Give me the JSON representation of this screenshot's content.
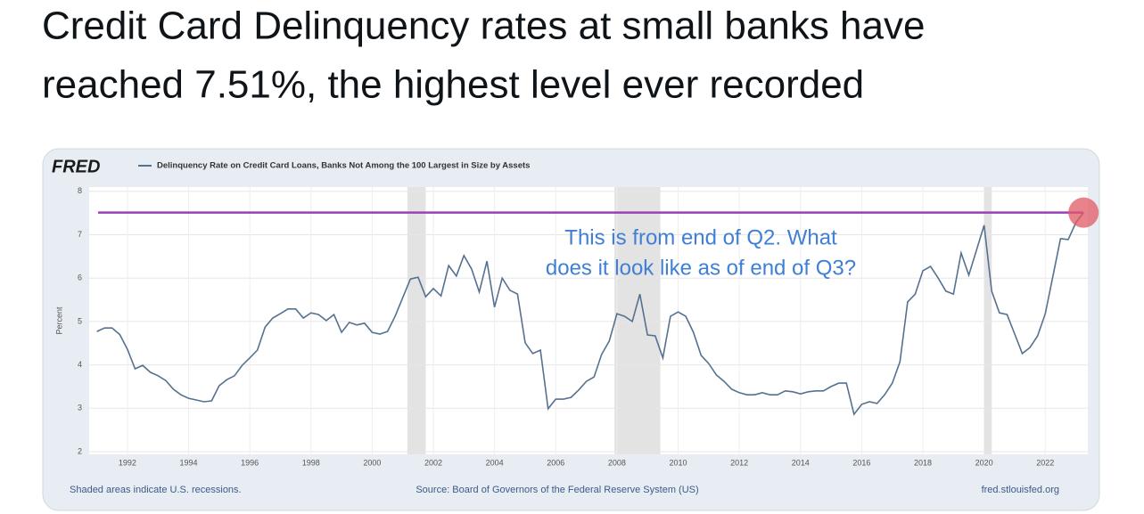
{
  "tweet": {
    "lines": [
      "Credit Card Delinquency rates at small banks have",
      "reached 7.51%, the highest level ever recorded"
    ]
  },
  "chart_data": {
    "type": "line",
    "brand": "FRED",
    "ylabel": "Percent",
    "annotation": [
      "This is from end of Q2. What",
      "does it look like as of end of Q3?"
    ],
    "notes": {
      "left": "Shaded areas indicate U.S. recessions.",
      "center": "Source: Board of Governors of the Federal Reserve System (US)",
      "right": "fred.stlouisfed.org"
    },
    "xlim": [
      1990.75,
      2023.35
    ],
    "ylim": [
      2,
      8
    ],
    "xticks": [
      1992,
      1994,
      1996,
      1998,
      2000,
      2002,
      2004,
      2006,
      2008,
      2010,
      2012,
      2014,
      2016,
      2018,
      2020,
      2022
    ],
    "yticks": [
      2,
      3,
      4,
      5,
      6,
      7,
      8
    ],
    "grid": true,
    "recessions": [
      [
        2001.15,
        2001.75
      ],
      [
        2007.92,
        2009.42
      ],
      [
        2020.0,
        2020.25
      ]
    ],
    "recession_color": "#e3e3e3",
    "hline": {
      "value": 7.51,
      "color": "#9b3fb5"
    },
    "highlight_color": "#e05a64",
    "x": [
      1991.0,
      1991.25,
      1991.5,
      1991.75,
      1992.0,
      1992.25,
      1992.5,
      1992.75,
      1993.0,
      1993.25,
      1993.5,
      1993.75,
      1994.0,
      1994.25,
      1994.5,
      1994.75,
      1995.0,
      1995.25,
      1995.5,
      1995.75,
      1996.0,
      1996.25,
      1996.5,
      1996.75,
      1997.0,
      1997.25,
      1997.5,
      1997.75,
      1998.0,
      1998.25,
      1998.5,
      1998.75,
      1999.0,
      1999.25,
      1999.5,
      1999.75,
      2000.0,
      2000.25,
      2000.5,
      2000.75,
      2001.0,
      2001.25,
      2001.5,
      2001.75,
      2002.0,
      2002.25,
      2002.5,
      2002.75,
      2003.0,
      2003.25,
      2003.5,
      2003.75,
      2004.0,
      2004.25,
      2004.5,
      2004.75,
      2005.0,
      2005.25,
      2005.5,
      2005.75,
      2006.0,
      2006.25,
      2006.5,
      2006.75,
      2007.0,
      2007.25,
      2007.5,
      2007.75,
      2008.0,
      2008.25,
      2008.5,
      2008.75,
      2009.0,
      2009.25,
      2009.5,
      2009.75,
      2010.0,
      2010.25,
      2010.5,
      2010.75,
      2011.0,
      2011.25,
      2011.5,
      2011.75,
      2012.0,
      2012.25,
      2012.5,
      2012.75,
      2013.0,
      2013.25,
      2013.5,
      2013.75,
      2014.0,
      2014.25,
      2014.5,
      2014.75,
      2015.0,
      2015.25,
      2015.5,
      2015.75,
      2016.0,
      2016.25,
      2016.5,
      2016.75,
      2017.0,
      2017.25,
      2017.5,
      2017.75,
      2018.0,
      2018.25,
      2018.5,
      2018.75,
      2019.0,
      2019.25,
      2019.5,
      2019.75,
      2020.0,
      2020.25,
      2020.5,
      2020.75,
      2021.0,
      2021.25,
      2021.5,
      2021.75,
      2022.0,
      2022.25,
      2022.5,
      2022.75,
      2023.0,
      2023.25
    ],
    "series": [
      {
        "name": "Delinquency Rate on Credit Card Loans, Banks Not Among the 100 Largest in Size by Assets",
        "color": "#56718f",
        "values": [
          4.77,
          4.85,
          4.85,
          4.7,
          4.36,
          3.91,
          3.99,
          3.83,
          3.75,
          3.64,
          3.44,
          3.31,
          3.23,
          3.19,
          3.15,
          3.17,
          3.52,
          3.66,
          3.75,
          3.99,
          4.16,
          4.34,
          4.87,
          5.08,
          5.18,
          5.29,
          5.29,
          5.08,
          5.2,
          5.16,
          5.02,
          5.16,
          4.75,
          4.98,
          4.92,
          4.96,
          4.75,
          4.71,
          4.77,
          5.12,
          5.55,
          5.98,
          6.02,
          5.57,
          5.76,
          5.59,
          6.29,
          6.05,
          6.52,
          6.21,
          5.68,
          6.39,
          5.33,
          6.0,
          5.72,
          5.63,
          4.51,
          4.26,
          4.34,
          2.99,
          3.21,
          3.21,
          3.25,
          3.42,
          3.62,
          3.72,
          4.24,
          4.55,
          5.18,
          5.12,
          5.0,
          5.63,
          4.69,
          4.67,
          4.16,
          5.12,
          5.22,
          5.12,
          4.75,
          4.22,
          4.03,
          3.77,
          3.62,
          3.44,
          3.36,
          3.31,
          3.31,
          3.36,
          3.31,
          3.31,
          3.4,
          3.38,
          3.33,
          3.38,
          3.4,
          3.4,
          3.5,
          3.58,
          3.58,
          2.86,
          3.09,
          3.15,
          3.11,
          3.31,
          3.58,
          4.07,
          5.45,
          5.63,
          6.17,
          6.27,
          6.0,
          5.7,
          5.63,
          6.58,
          6.07,
          6.64,
          7.22,
          5.7,
          5.2,
          5.16,
          4.71,
          4.26,
          4.4,
          4.67,
          5.18,
          6.05,
          6.91,
          6.89,
          7.28,
          7.51
        ]
      }
    ]
  }
}
